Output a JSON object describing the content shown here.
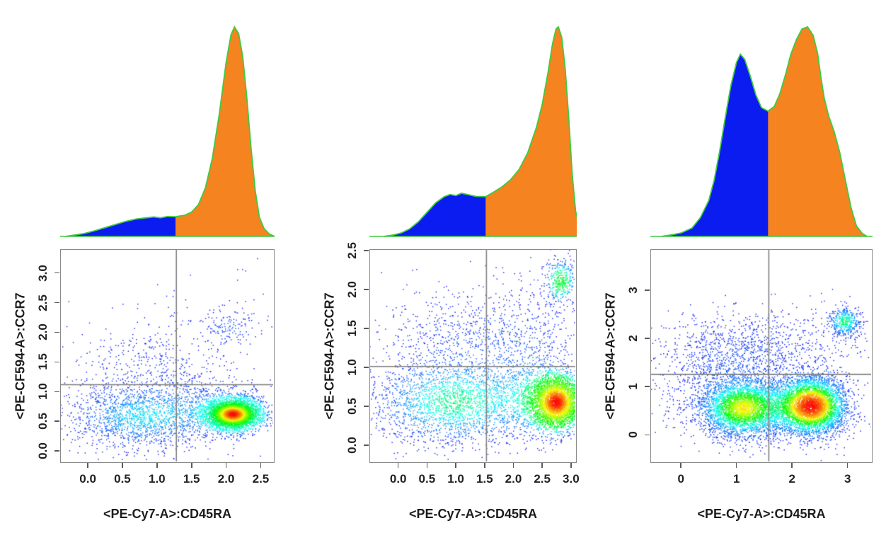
{
  "colors": {
    "density_fill_left": "#0a1cf0",
    "density_fill_right": "#f5831f",
    "density_outline": "#41c941",
    "gate_line": "#7e7e7e",
    "plot_border": "#8a8a8a",
    "tick_color": "#5a5a5a",
    "text_color": "#1c1c1c"
  },
  "chart_data": [
    {
      "id": "left-panel",
      "density": {
        "type": "area",
        "split_x": 1.27,
        "curve": [
          [
            -0.32,
            0
          ],
          [
            -0.2,
            0.006
          ],
          [
            -0.05,
            0.014
          ],
          [
            0.1,
            0.027
          ],
          [
            0.25,
            0.042
          ],
          [
            0.4,
            0.057
          ],
          [
            0.55,
            0.072
          ],
          [
            0.7,
            0.083
          ],
          [
            0.85,
            0.089
          ],
          [
            0.95,
            0.093
          ],
          [
            1.05,
            0.089
          ],
          [
            1.15,
            0.095
          ],
          [
            1.27,
            0.094
          ],
          [
            1.4,
            0.101
          ],
          [
            1.5,
            0.116
          ],
          [
            1.6,
            0.152
          ],
          [
            1.7,
            0.232
          ],
          [
            1.8,
            0.372
          ],
          [
            1.9,
            0.582
          ],
          [
            2.0,
            0.832
          ],
          [
            2.07,
            0.962
          ],
          [
            2.12,
            1.0
          ],
          [
            2.18,
            0.968
          ],
          [
            2.24,
            0.858
          ],
          [
            2.3,
            0.658
          ],
          [
            2.36,
            0.42
          ],
          [
            2.42,
            0.22
          ],
          [
            2.48,
            0.092
          ],
          [
            2.55,
            0.036
          ],
          [
            2.62,
            0.012
          ],
          [
            2.7,
            0
          ]
        ]
      },
      "scatter": {
        "type": "scatter",
        "xlabel": "<PE-Cy7-A>:CD45RA",
        "ylabel": "<PE-CF594-A>:CCR7",
        "xlim": [
          -0.4,
          2.7
        ],
        "ylim": [
          -0.2,
          3.4
        ],
        "x_tick_values": [
          0,
          0.5,
          1,
          1.5,
          2,
          2.5
        ],
        "x_tick_labels": [
          "0.0",
          "0.5",
          "1.0",
          "1.5",
          "2.0",
          "2.5"
        ],
        "y_tick_values": [
          0,
          0.5,
          1,
          1.5,
          2,
          2.5,
          3
        ],
        "y_tick_labels": [
          "0.0",
          "0.5",
          "1.0",
          "1.5",
          "2.0",
          "2.5",
          "3.0"
        ],
        "gate_x": 1.27,
        "gate_y": 1.13,
        "clusters": [
          {
            "cx": 2.1,
            "cy": 0.62,
            "sx": 0.2,
            "sy": 0.13,
            "n": 4200
          },
          {
            "cx": 0.75,
            "cy": 0.58,
            "sx": 0.55,
            "sy": 0.28,
            "n": 1600
          },
          {
            "cx": 0.9,
            "cy": 1.45,
            "sx": 0.55,
            "sy": 0.35,
            "n": 380
          },
          {
            "cx": 1.6,
            "cy": 0.75,
            "sx": 0.45,
            "sy": 0.3,
            "n": 500
          },
          {
            "cx": 2.05,
            "cy": 2.1,
            "sx": 0.18,
            "sy": 0.15,
            "n": 120
          },
          {
            "cx": 1.6,
            "cy": 2.1,
            "sx": 0.6,
            "sy": 0.35,
            "n": 60
          },
          {
            "cx": 2.3,
            "cy": 3.1,
            "sx": 0.15,
            "sy": 0.12,
            "n": 4
          }
        ]
      }
    },
    {
      "id": "middle-panel",
      "density": {
        "type": "area",
        "split_x": 1.52,
        "curve": [
          [
            -0.25,
            0
          ],
          [
            -0.1,
            0.006
          ],
          [
            0.05,
            0.016
          ],
          [
            0.2,
            0.036
          ],
          [
            0.35,
            0.07
          ],
          [
            0.5,
            0.115
          ],
          [
            0.65,
            0.16
          ],
          [
            0.8,
            0.19
          ],
          [
            0.9,
            0.2
          ],
          [
            1.0,
            0.195
          ],
          [
            1.1,
            0.206
          ],
          [
            1.2,
            0.2
          ],
          [
            1.35,
            0.191
          ],
          [
            1.52,
            0.19
          ],
          [
            1.65,
            0.21
          ],
          [
            1.8,
            0.236
          ],
          [
            1.95,
            0.27
          ],
          [
            2.1,
            0.32
          ],
          [
            2.25,
            0.4
          ],
          [
            2.4,
            0.52
          ],
          [
            2.5,
            0.63
          ],
          [
            2.6,
            0.78
          ],
          [
            2.68,
            0.92
          ],
          [
            2.74,
            0.99
          ],
          [
            2.78,
            1.0
          ],
          [
            2.84,
            0.95
          ],
          [
            2.9,
            0.8
          ],
          [
            2.96,
            0.57
          ],
          [
            3.02,
            0.3
          ],
          [
            3.08,
            0.12
          ],
          [
            3.15,
            0.04
          ],
          [
            3.25,
            0.01
          ],
          [
            3.3,
            0
          ]
        ]
      },
      "scatter": {
        "type": "scatter",
        "xlabel": "<PE-Cy7-A>:CD45RA",
        "ylabel": "<PE-CF594-A>:CCR7",
        "xlim": [
          -0.5,
          3.1
        ],
        "ylim": [
          -0.23,
          2.52
        ],
        "x_tick_values": [
          0,
          0.5,
          1,
          1.5,
          2,
          2.5,
          3
        ],
        "x_tick_labels": [
          "0.0",
          "0.5",
          "1.0",
          "1.5",
          "2.0",
          "2.5",
          "3.0"
        ],
        "y_tick_values": [
          0,
          0.5,
          1,
          1.5,
          2,
          2.5
        ],
        "y_tick_labels": [
          "0.0",
          "0.5",
          "1.0",
          "1.5",
          "2.0",
          "2.5"
        ],
        "gate_x": 1.52,
        "gate_y": 1.02,
        "clusters": [
          {
            "cx": 2.75,
            "cy": 0.55,
            "sx": 0.22,
            "sy": 0.17,
            "n": 3200
          },
          {
            "cx": 2.4,
            "cy": 0.6,
            "sx": 0.35,
            "sy": 0.25,
            "n": 600
          },
          {
            "cx": 1.0,
            "cy": 0.55,
            "sx": 0.75,
            "sy": 0.28,
            "n": 2400
          },
          {
            "cx": 1.1,
            "cy": 1.35,
            "sx": 0.75,
            "sy": 0.33,
            "n": 650
          },
          {
            "cx": 2.3,
            "cy": 1.3,
            "sx": 0.45,
            "sy": 0.45,
            "n": 450
          },
          {
            "cx": 2.82,
            "cy": 2.1,
            "sx": 0.13,
            "sy": 0.13,
            "n": 320
          },
          {
            "cx": 2.75,
            "cy": 2.32,
            "sx": 0.3,
            "sy": 0.12,
            "n": 40
          }
        ]
      }
    },
    {
      "id": "right-panel",
      "density": {
        "type": "area",
        "split_x": 1.57,
        "curve": [
          [
            -0.35,
            0
          ],
          [
            -0.2,
            0.006
          ],
          [
            0.0,
            0.016
          ],
          [
            0.2,
            0.04
          ],
          [
            0.35,
            0.09
          ],
          [
            0.5,
            0.17
          ],
          [
            0.6,
            0.27
          ],
          [
            0.7,
            0.41
          ],
          [
            0.8,
            0.57
          ],
          [
            0.9,
            0.72
          ],
          [
            1.0,
            0.83
          ],
          [
            1.07,
            0.87
          ],
          [
            1.15,
            0.845
          ],
          [
            1.25,
            0.765
          ],
          [
            1.35,
            0.675
          ],
          [
            1.45,
            0.615
          ],
          [
            1.57,
            0.598
          ],
          [
            1.68,
            0.62
          ],
          [
            1.78,
            0.68
          ],
          [
            1.88,
            0.77
          ],
          [
            1.98,
            0.87
          ],
          [
            2.08,
            0.94
          ],
          [
            2.18,
            0.99
          ],
          [
            2.28,
            1.0
          ],
          [
            2.38,
            0.96
          ],
          [
            2.46,
            0.875
          ],
          [
            2.52,
            0.76
          ],
          [
            2.58,
            0.66
          ],
          [
            2.66,
            0.575
          ],
          [
            2.76,
            0.5
          ],
          [
            2.86,
            0.4
          ],
          [
            2.96,
            0.27
          ],
          [
            3.06,
            0.14
          ],
          [
            3.16,
            0.05
          ],
          [
            3.26,
            0.015
          ],
          [
            3.35,
            0
          ]
        ]
      },
      "scatter": {
        "type": "scatter",
        "xlabel": "<PE-Cy7-A>:CD45RA",
        "ylabel": "<PE-CF594-A>:CCR7",
        "xlim": [
          -0.55,
          3.45
        ],
        "ylim": [
          -0.58,
          3.85
        ],
        "x_tick_values": [
          0,
          1,
          2,
          3
        ],
        "x_tick_labels": [
          "0",
          "1",
          "2",
          "3"
        ],
        "y_tick_values": [
          0,
          1,
          2,
          3
        ],
        "y_tick_labels": [
          "0",
          "1",
          "2",
          "3"
        ],
        "gate_x": 1.57,
        "gate_y": 1.27,
        "clusters": [
          {
            "cx": 2.35,
            "cy": 0.6,
            "sx": 0.32,
            "sy": 0.3,
            "n": 4300
          },
          {
            "cx": 1.1,
            "cy": 0.55,
            "sx": 0.38,
            "sy": 0.3,
            "n": 3300
          },
          {
            "cx": 1.7,
            "cy": 0.6,
            "sx": 0.5,
            "sy": 0.35,
            "n": 900
          },
          {
            "cx": 2.95,
            "cy": 2.35,
            "sx": 0.14,
            "sy": 0.15,
            "n": 420
          },
          {
            "cx": 1.0,
            "cy": 1.6,
            "sx": 0.75,
            "sy": 0.4,
            "n": 800
          },
          {
            "cx": 2.2,
            "cy": 1.9,
            "sx": 0.7,
            "sy": 0.4,
            "n": 300
          },
          {
            "cx": 0.5,
            "cy": 0.9,
            "sx": 0.6,
            "sy": 0.5,
            "n": 400
          },
          {
            "cx": 0.9,
            "cy": 2.1,
            "sx": 0.55,
            "sy": 0.35,
            "n": 120
          }
        ]
      }
    }
  ]
}
